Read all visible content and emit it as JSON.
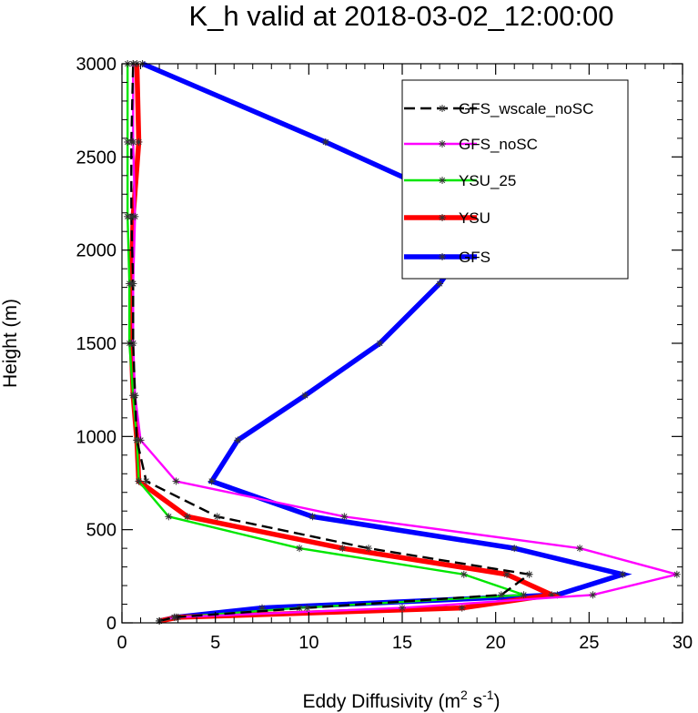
{
  "chart_data": {
    "type": "line",
    "title": "K_h valid at 2018-03-02_12:00:00",
    "xlabel": "Eddy Diffusivity",
    "xlabel_unit_base1": "m",
    "xlabel_unit_exp1": "2",
    "xlabel_unit_base2": " s",
    "xlabel_unit_exp2": "-1",
    "ylabel": "Height (m)",
    "xlim": [
      0,
      30
    ],
    "ylim": [
      0,
      3000
    ],
    "x_ticks": [
      0,
      5,
      10,
      15,
      20,
      25,
      30
    ],
    "y_ticks": [
      0,
      500,
      1000,
      1500,
      2000,
      2500,
      3000
    ],
    "legend_position": "top-right",
    "series": [
      {
        "name": "GFS_wscale_noSC",
        "color": "#000000",
        "style": "dashed",
        "x": [
          2.0,
          2.8,
          9.9,
          20.3,
          21.8,
          13.2,
          5.1,
          1.3,
          0.8,
          0.7,
          0.6,
          0.6,
          0.5,
          0.5,
          0.6
        ],
        "y": [
          10,
          30,
          80,
          150,
          260,
          400,
          570,
          760,
          980,
          1220,
          1500,
          1820,
          2180,
          2580,
          3000
        ]
      },
      {
        "name": "GFS_noSC",
        "color": "#ff00ff",
        "style": "solid",
        "x": [
          2.0,
          2.8,
          15.0,
          25.2,
          29.7,
          24.5,
          11.9,
          2.9,
          1.0,
          0.7,
          0.6,
          0.6,
          0.7,
          0.6,
          0.6
        ],
        "y": [
          10,
          30,
          80,
          150,
          260,
          400,
          570,
          760,
          980,
          1220,
          1500,
          1820,
          2180,
          2580,
          3000
        ]
      },
      {
        "name": "YSU_25",
        "color": "#00e600",
        "style": "solid",
        "x": [
          2.0,
          2.9,
          9.5,
          21.5,
          18.3,
          9.5,
          2.5,
          0.9,
          0.8,
          0.6,
          0.4,
          0.4,
          0.3,
          0.3,
          0.3
        ],
        "y": [
          10,
          30,
          80,
          150,
          260,
          400,
          570,
          760,
          980,
          1220,
          1500,
          1820,
          2180,
          2580,
          3000
        ]
      },
      {
        "name": "YSU",
        "color": "#ff0000",
        "style": "solid",
        "x": [
          2.0,
          3.0,
          18.2,
          23.0,
          20.6,
          11.8,
          3.5,
          0.9,
          0.8,
          0.6,
          0.5,
          0.5,
          0.6,
          0.9,
          0.8
        ],
        "y": [
          10,
          30,
          80,
          150,
          260,
          400,
          570,
          760,
          980,
          1220,
          1500,
          1820,
          2180,
          2580,
          3000
        ]
      },
      {
        "name": "GFS",
        "color": "#0000ff",
        "style": "solid",
        "x": [
          2.0,
          2.9,
          7.5,
          23.3,
          26.8,
          21.0,
          10.2,
          4.8,
          6.2,
          9.8,
          13.8,
          17.0,
          19.7,
          10.9,
          1.1
        ],
        "y": [
          10,
          30,
          80,
          150,
          260,
          400,
          570,
          760,
          980,
          1220,
          1500,
          1820,
          2180,
          2580,
          3000
        ]
      }
    ]
  }
}
